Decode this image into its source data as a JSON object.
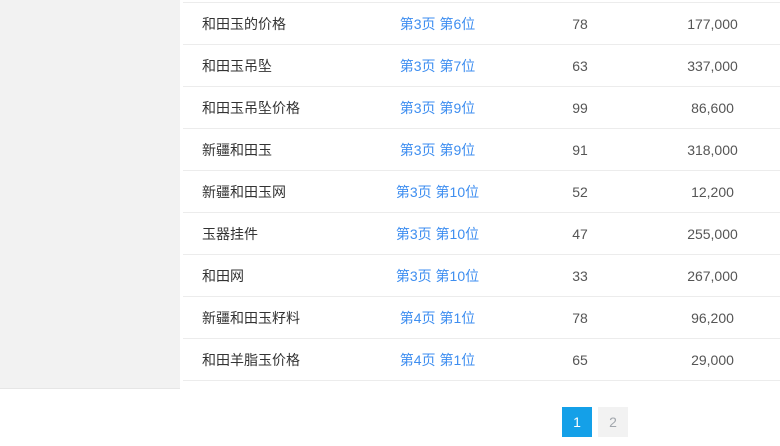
{
  "colors": {
    "link": "#3e8ef0",
    "pagination_active": "#14a0e8",
    "sidebar_background": "#f2f2f2",
    "row_border": "#ececec",
    "keyword_text": "#333333",
    "number_text": "#555555"
  },
  "table": {
    "rows": [
      {
        "keyword": "和田玉的价格",
        "rank": "第3页 第6位",
        "index": "78",
        "result": "177,000"
      },
      {
        "keyword": "和田玉吊坠",
        "rank": "第3页 第7位",
        "index": "63",
        "result": "337,000"
      },
      {
        "keyword": "和田玉吊坠价格",
        "rank": "第3页 第9位",
        "index": "99",
        "result": "86,600"
      },
      {
        "keyword": "新疆和田玉",
        "rank": "第3页 第9位",
        "index": "91",
        "result": "318,000"
      },
      {
        "keyword": "新疆和田玉网",
        "rank": "第3页 第10位",
        "index": "52",
        "result": "12,200"
      },
      {
        "keyword": "玉器挂件",
        "rank": "第3页 第10位",
        "index": "47",
        "result": "255,000"
      },
      {
        "keyword": "和田网",
        "rank": "第3页 第10位",
        "index": "33",
        "result": "267,000"
      },
      {
        "keyword": "新疆和田玉籽料",
        "rank": "第4页 第1位",
        "index": "78",
        "result": "96,200"
      },
      {
        "keyword": "和田羊脂玉价格",
        "rank": "第4页 第1位",
        "index": "65",
        "result": "29,000"
      }
    ]
  },
  "pagination": {
    "pages": [
      {
        "label": "1",
        "active": true
      },
      {
        "label": "2",
        "active": false
      }
    ]
  }
}
